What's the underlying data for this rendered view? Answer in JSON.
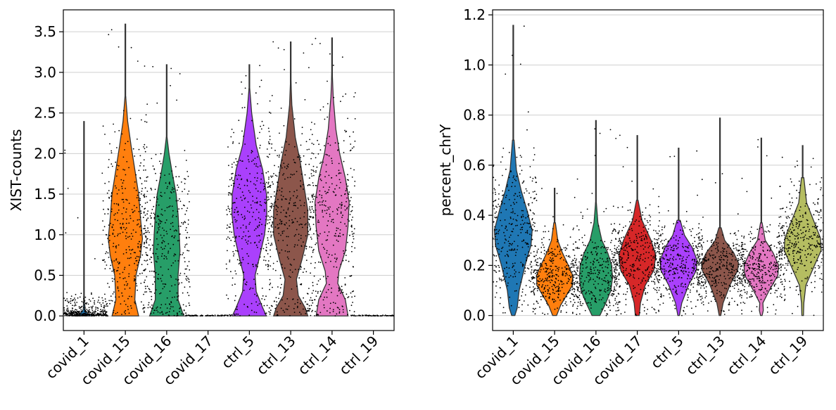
{
  "chart_data": [
    {
      "type": "violin",
      "ylabel": "XIST-counts",
      "ylim": [
        -0.18,
        3.77
      ],
      "yticks": [
        "0.0",
        "0.5",
        "1.0",
        "1.5",
        "2.0",
        "2.5",
        "3.0",
        "3.5"
      ],
      "grid": "horizontal",
      "categories": [
        "covid_1",
        "covid_15",
        "covid_16",
        "covid_17",
        "ctrl_5",
        "ctrl_13",
        "ctrl_14",
        "ctrl_19"
      ],
      "colors": [
        "#1f77b4",
        "#ff7f0e",
        "#279e68",
        "#d62728",
        "#aa40fc",
        "#8c564b",
        "#e377c2",
        "#b5bd61"
      ],
      "max": [
        2.4,
        3.6,
        3.1,
        0.0,
        3.1,
        3.38,
        3.43,
        0.0
      ],
      "median": [
        0.0,
        0.9,
        0.6,
        0.0,
        1.2,
        1.1,
        1.2,
        0.0
      ],
      "profiles": [
        [
          [
            0.0,
            0.25
          ],
          [
            0.03,
            0.1
          ],
          [
            0.08,
            0.02
          ],
          [
            0.3,
            0.0
          ]
        ],
        [
          [
            0.0,
            0.35
          ],
          [
            0.2,
            0.25
          ],
          [
            0.5,
            0.28
          ],
          [
            0.75,
            0.4
          ],
          [
            0.95,
            0.45
          ],
          [
            1.2,
            0.4
          ],
          [
            1.5,
            0.35
          ],
          [
            1.8,
            0.25
          ],
          [
            2.1,
            0.15
          ],
          [
            2.4,
            0.06
          ],
          [
            2.7,
            0.01
          ]
        ],
        [
          [
            0.0,
            0.45
          ],
          [
            0.2,
            0.3
          ],
          [
            0.5,
            0.3
          ],
          [
            0.8,
            0.35
          ],
          [
            1.0,
            0.33
          ],
          [
            1.25,
            0.3
          ],
          [
            1.5,
            0.25
          ],
          [
            1.75,
            0.15
          ],
          [
            2.0,
            0.06
          ],
          [
            2.2,
            0.01
          ]
        ],
        [
          [
            0.0,
            0.02
          ],
          [
            0.01,
            0.0
          ]
        ],
        [
          [
            0.0,
            0.45
          ],
          [
            0.1,
            0.35
          ],
          [
            0.3,
            0.18
          ],
          [
            0.5,
            0.15
          ],
          [
            0.75,
            0.28
          ],
          [
            1.0,
            0.4
          ],
          [
            1.25,
            0.46
          ],
          [
            1.5,
            0.45
          ],
          [
            1.8,
            0.35
          ],
          [
            2.1,
            0.18
          ],
          [
            2.5,
            0.06
          ],
          [
            2.8,
            0.01
          ]
        ],
        [
          [
            0.0,
            0.45
          ],
          [
            0.1,
            0.38
          ],
          [
            0.25,
            0.2
          ],
          [
            0.45,
            0.15
          ],
          [
            0.7,
            0.3
          ],
          [
            1.0,
            0.45
          ],
          [
            1.3,
            0.45
          ],
          [
            1.6,
            0.35
          ],
          [
            1.9,
            0.25
          ],
          [
            2.2,
            0.12
          ],
          [
            2.6,
            0.03
          ],
          [
            2.9,
            0.005
          ]
        ],
        [
          [
            0.0,
            0.42
          ],
          [
            0.2,
            0.35
          ],
          [
            0.4,
            0.15
          ],
          [
            0.55,
            0.18
          ],
          [
            0.8,
            0.35
          ],
          [
            1.1,
            0.42
          ],
          [
            1.4,
            0.45
          ],
          [
            1.7,
            0.35
          ],
          [
            2.0,
            0.2
          ],
          [
            2.3,
            0.1
          ],
          [
            2.7,
            0.03
          ],
          [
            3.0,
            0.005
          ]
        ],
        [
          [
            0.0,
            0.02
          ],
          [
            0.01,
            0.0
          ]
        ]
      ]
    },
    {
      "type": "violin",
      "ylabel": "percent_chrY",
      "ylim": [
        -0.06,
        1.22
      ],
      "yticks": [
        "0.0",
        "0.2",
        "0.4",
        "0.6",
        "0.8",
        "1.0",
        "1.2"
      ],
      "grid": "horizontal",
      "categories": [
        "covid_1",
        "covid_15",
        "covid_16",
        "covid_17",
        "ctrl_5",
        "ctrl_13",
        "ctrl_14",
        "ctrl_19"
      ],
      "colors": [
        "#1f77b4",
        "#ff7f0e",
        "#279e68",
        "#d62728",
        "#aa40fc",
        "#8c564b",
        "#e377c2",
        "#b5bd61"
      ],
      "max": [
        1.16,
        0.51,
        0.78,
        0.72,
        0.67,
        0.79,
        0.71,
        0.68
      ],
      "median": [
        0.32,
        0.14,
        0.16,
        0.24,
        0.21,
        0.2,
        0.2,
        0.28
      ],
      "profiles": [
        [
          [
            0.0,
            0.04
          ],
          [
            0.03,
            0.1
          ],
          [
            0.1,
            0.15
          ],
          [
            0.2,
            0.3
          ],
          [
            0.28,
            0.45
          ],
          [
            0.34,
            0.48
          ],
          [
            0.42,
            0.35
          ],
          [
            0.5,
            0.2
          ],
          [
            0.58,
            0.08
          ],
          [
            0.7,
            0.02
          ]
        ],
        [
          [
            0.0,
            0.05
          ],
          [
            0.04,
            0.15
          ],
          [
            0.08,
            0.3
          ],
          [
            0.12,
            0.45
          ],
          [
            0.16,
            0.46
          ],
          [
            0.2,
            0.35
          ],
          [
            0.25,
            0.2
          ],
          [
            0.3,
            0.08
          ],
          [
            0.37,
            0.02
          ]
        ],
        [
          [
            0.0,
            0.1
          ],
          [
            0.05,
            0.25
          ],
          [
            0.1,
            0.38
          ],
          [
            0.15,
            0.42
          ],
          [
            0.2,
            0.4
          ],
          [
            0.25,
            0.3
          ],
          [
            0.3,
            0.15
          ],
          [
            0.37,
            0.05
          ],
          [
            0.45,
            0.01
          ]
        ],
        [
          [
            0.0,
            0.05
          ],
          [
            0.05,
            0.08
          ],
          [
            0.12,
            0.2
          ],
          [
            0.18,
            0.42
          ],
          [
            0.24,
            0.47
          ],
          [
            0.3,
            0.35
          ],
          [
            0.38,
            0.12
          ],
          [
            0.46,
            0.02
          ]
        ],
        [
          [
            0.0,
            0.02
          ],
          [
            0.05,
            0.08
          ],
          [
            0.12,
            0.25
          ],
          [
            0.18,
            0.45
          ],
          [
            0.22,
            0.47
          ],
          [
            0.27,
            0.35
          ],
          [
            0.32,
            0.15
          ],
          [
            0.38,
            0.04
          ]
        ],
        [
          [
            0.0,
            0.02
          ],
          [
            0.05,
            0.08
          ],
          [
            0.12,
            0.25
          ],
          [
            0.18,
            0.45
          ],
          [
            0.21,
            0.47
          ],
          [
            0.25,
            0.35
          ],
          [
            0.3,
            0.12
          ],
          [
            0.35,
            0.03
          ]
        ],
        [
          [
            0.0,
            0.02
          ],
          [
            0.02,
            0.05
          ],
          [
            0.05,
            0.04
          ],
          [
            0.1,
            0.2
          ],
          [
            0.16,
            0.42
          ],
          [
            0.2,
            0.44
          ],
          [
            0.25,
            0.3
          ],
          [
            0.3,
            0.1
          ],
          [
            0.37,
            0.02
          ]
        ],
        [
          [
            0.0,
            0.02
          ],
          [
            0.05,
            0.03
          ],
          [
            0.12,
            0.08
          ],
          [
            0.2,
            0.3
          ],
          [
            0.26,
            0.47
          ],
          [
            0.31,
            0.45
          ],
          [
            0.37,
            0.3
          ],
          [
            0.45,
            0.1
          ],
          [
            0.55,
            0.03
          ]
        ]
      ]
    }
  ]
}
